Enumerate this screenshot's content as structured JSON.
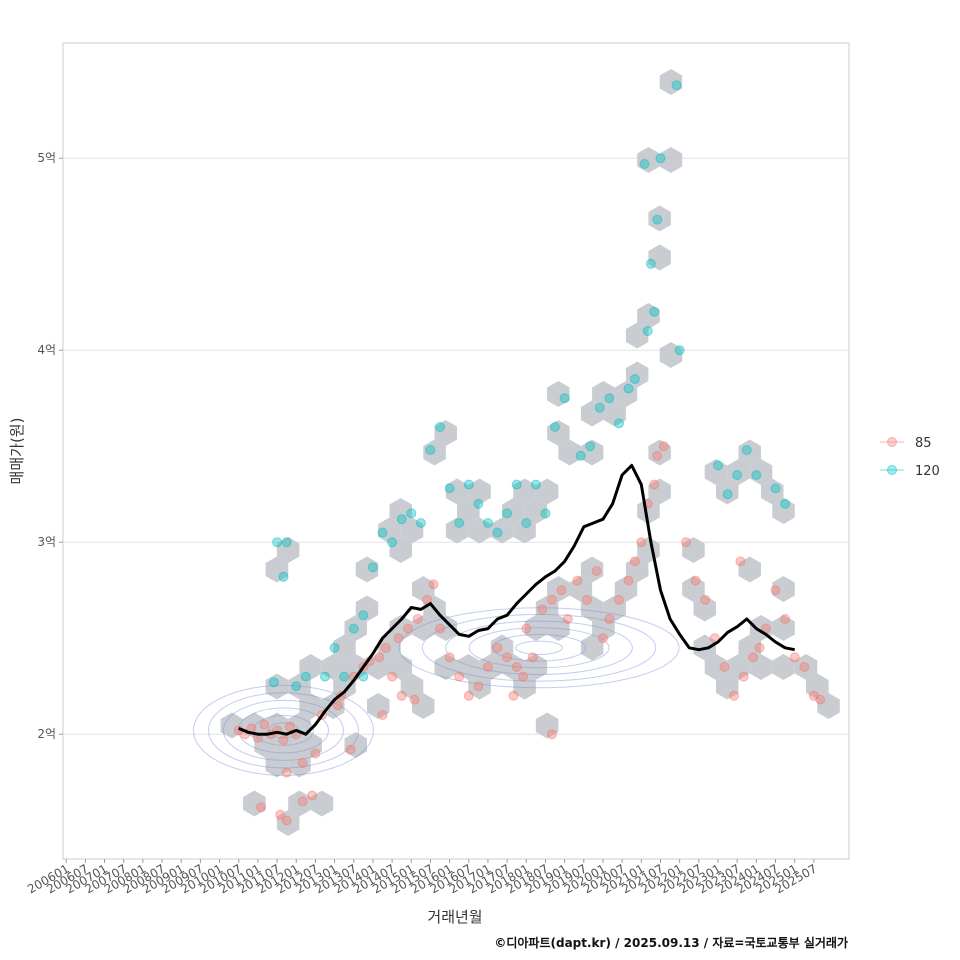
{
  "chart_data": {
    "type": "scatter",
    "title": "",
    "xlabel": "거래년월",
    "ylabel": "매매가(원)",
    "caption": "©디아파트(dapt.kr) / 2025.09.13 / 자료=국토교통부 실거래가",
    "x_ticks": [
      "200601",
      "200607",
      "200701",
      "200707",
      "200801",
      "200807",
      "200901",
      "200907",
      "201001",
      "201007",
      "201101",
      "201107",
      "201201",
      "201207",
      "201301",
      "201307",
      "201401",
      "201407",
      "201501",
      "201507",
      "201601",
      "201607",
      "201701",
      "201707",
      "201801",
      "201807",
      "201901",
      "201907",
      "202001",
      "202007",
      "202101",
      "202107",
      "202201",
      "202207",
      "202301",
      "202307",
      "202401",
      "202407",
      "202501",
      "202507"
    ],
    "y_ticks": [
      {
        "value": 2.0,
        "label": "2억"
      },
      {
        "value": 3.0,
        "label": "3억"
      },
      {
        "value": 4.0,
        "label": "4억"
      },
      {
        "value": 5.0,
        "label": "5억"
      }
    ],
    "xlim": [
      "200512",
      "202606"
    ],
    "ylim": [
      1.35,
      5.6
    ],
    "y_unit": "억원",
    "grid": "horizontal",
    "legend_position": "right",
    "colors": {
      "series_85": "#f8766d",
      "series_120": "#00bfc4",
      "hex": "#c3c8cc",
      "trend": "#000000",
      "contour": "#7b8fe0"
    },
    "series": [
      {
        "name": "85",
        "color": "#f8766d",
        "points": [
          [
            "201007",
            2.02
          ],
          [
            "201009",
            2.0
          ],
          [
            "201011",
            2.03
          ],
          [
            "201101",
            1.98
          ],
          [
            "201103",
            2.05
          ],
          [
            "201105",
            2.0
          ],
          [
            "201107",
            2.02
          ],
          [
            "201109",
            1.97
          ],
          [
            "201111",
            2.04
          ],
          [
            "201201",
            2.0
          ],
          [
            "201102",
            1.62
          ],
          [
            "201108",
            1.58
          ],
          [
            "201110",
            1.55
          ],
          [
            "201203",
            1.65
          ],
          [
            "201206",
            1.68
          ],
          [
            "201110",
            1.8
          ],
          [
            "201203",
            1.85
          ],
          [
            "201207",
            1.9
          ],
          [
            "201209",
            2.1
          ],
          [
            "201302",
            2.15
          ],
          [
            "201303",
            2.2
          ],
          [
            "201306",
            1.92
          ],
          [
            "201307",
            2.3
          ],
          [
            "201310",
            2.35
          ],
          [
            "201312",
            2.38
          ],
          [
            "201403",
            2.4
          ],
          [
            "201405",
            2.45
          ],
          [
            "201407",
            2.3
          ],
          [
            "201409",
            2.5
          ],
          [
            "201412",
            2.55
          ],
          [
            "201503",
            2.6
          ],
          [
            "201506",
            2.7
          ],
          [
            "201508",
            2.78
          ],
          [
            "201510",
            2.55
          ],
          [
            "201404",
            2.1
          ],
          [
            "201410",
            2.2
          ],
          [
            "201502",
            2.18
          ],
          [
            "201601",
            2.4
          ],
          [
            "201604",
            2.3
          ],
          [
            "201607",
            2.2
          ],
          [
            "201610",
            2.25
          ],
          [
            "201701",
            2.35
          ],
          [
            "201704",
            2.45
          ],
          [
            "201707",
            2.4
          ],
          [
            "201710",
            2.35
          ],
          [
            "201801",
            2.55
          ],
          [
            "201709",
            2.2
          ],
          [
            "201712",
            2.3
          ],
          [
            "201803",
            2.4
          ],
          [
            "201806",
            2.65
          ],
          [
            "201809",
            2.7
          ],
          [
            "201812",
            2.75
          ],
          [
            "201902",
            2.6
          ],
          [
            "201905",
            2.8
          ],
          [
            "201908",
            2.7
          ],
          [
            "201911",
            2.85
          ],
          [
            "202001",
            2.5
          ],
          [
            "202003",
            2.6
          ],
          [
            "202006",
            2.7
          ],
          [
            "202009",
            2.8
          ],
          [
            "202011",
            2.9
          ],
          [
            "202101",
            3.0
          ],
          [
            "202103",
            3.2
          ],
          [
            "202105",
            3.3
          ],
          [
            "202106",
            3.45
          ],
          [
            "202108",
            3.5
          ],
          [
            "201809",
            2.0
          ],
          [
            "202203",
            3.0
          ],
          [
            "202206",
            2.8
          ],
          [
            "202209",
            2.7
          ],
          [
            "202212",
            2.5
          ],
          [
            "202303",
            2.35
          ],
          [
            "202306",
            2.2
          ],
          [
            "202309",
            2.3
          ],
          [
            "202312",
            2.4
          ],
          [
            "202308",
            2.9
          ],
          [
            "202402",
            2.45
          ],
          [
            "202404",
            2.55
          ],
          [
            "202407",
            2.75
          ],
          [
            "202410",
            2.6
          ],
          [
            "202501",
            2.4
          ],
          [
            "202504",
            2.35
          ],
          [
            "202507",
            2.2
          ],
          [
            "202509",
            2.18
          ]
        ]
      },
      {
        "name": "120",
        "color": "#00bfc4",
        "points": [
          [
            "201107",
            3.0
          ],
          [
            "201110",
            3.0
          ],
          [
            "201109",
            2.82
          ],
          [
            "201106",
            2.27
          ],
          [
            "201201",
            2.25
          ],
          [
            "201204",
            2.3
          ],
          [
            "201210",
            2.3
          ],
          [
            "201304",
            2.3
          ],
          [
            "201310",
            2.3
          ],
          [
            "201307",
            2.55
          ],
          [
            "201310",
            2.62
          ],
          [
            "201301",
            2.45
          ],
          [
            "201401",
            2.87
          ],
          [
            "201404",
            3.05
          ],
          [
            "201407",
            3.0
          ],
          [
            "201410",
            3.12
          ],
          [
            "201501",
            3.15
          ],
          [
            "201504",
            3.1
          ],
          [
            "201507",
            3.48
          ],
          [
            "201510",
            3.6
          ],
          [
            "201601",
            3.28
          ],
          [
            "201604",
            3.1
          ],
          [
            "201607",
            3.3
          ],
          [
            "201610",
            3.2
          ],
          [
            "201701",
            3.1
          ],
          [
            "201704",
            3.05
          ],
          [
            "201707",
            3.15
          ],
          [
            "201710",
            3.3
          ],
          [
            "201801",
            3.1
          ],
          [
            "201804",
            3.3
          ],
          [
            "201807",
            3.15
          ],
          [
            "201810",
            3.6
          ],
          [
            "201901",
            3.75
          ],
          [
            "201906",
            3.45
          ],
          [
            "201909",
            3.5
          ],
          [
            "201912",
            3.7
          ],
          [
            "202003",
            3.75
          ],
          [
            "202006",
            3.62
          ],
          [
            "202009",
            3.8
          ],
          [
            "202011",
            3.85
          ],
          [
            "202103",
            4.1
          ],
          [
            "202105",
            4.2
          ],
          [
            "202104",
            4.45
          ],
          [
            "202106",
            4.68
          ],
          [
            "202102",
            4.97
          ],
          [
            "202107",
            5.0
          ],
          [
            "202112",
            5.38
          ],
          [
            "202201",
            4.0
          ],
          [
            "202301",
            3.4
          ],
          [
            "202304",
            3.25
          ],
          [
            "202307",
            3.35
          ],
          [
            "202310",
            3.48
          ],
          [
            "202401",
            3.35
          ],
          [
            "202407",
            3.28
          ],
          [
            "202410",
            3.2
          ]
        ]
      }
    ],
    "trend_line": [
      [
        "201007",
        2.03
      ],
      [
        "201010",
        2.01
      ],
      [
        "201101",
        2.0
      ],
      [
        "201104",
        2.0
      ],
      [
        "201107",
        2.01
      ],
      [
        "201110",
        2.0
      ],
      [
        "201201",
        2.02
      ],
      [
        "201204",
        2.0
      ],
      [
        "201207",
        2.05
      ],
      [
        "201210",
        2.12
      ],
      [
        "201301",
        2.18
      ],
      [
        "201304",
        2.22
      ],
      [
        "201307",
        2.28
      ],
      [
        "201310",
        2.35
      ],
      [
        "201401",
        2.42
      ],
      [
        "201404",
        2.5
      ],
      [
        "201407",
        2.55
      ],
      [
        "201410",
        2.6
      ],
      [
        "201501",
        2.66
      ],
      [
        "201504",
        2.65
      ],
      [
        "201507",
        2.68
      ],
      [
        "201510",
        2.62
      ],
      [
        "201601",
        2.57
      ],
      [
        "201604",
        2.52
      ],
      [
        "201607",
        2.51
      ],
      [
        "201610",
        2.54
      ],
      [
        "201701",
        2.55
      ],
      [
        "201704",
        2.6
      ],
      [
        "201707",
        2.62
      ],
      [
        "201710",
        2.68
      ],
      [
        "201801",
        2.73
      ],
      [
        "201804",
        2.78
      ],
      [
        "201807",
        2.82
      ],
      [
        "201810",
        2.85
      ],
      [
        "201901",
        2.9
      ],
      [
        "201904",
        2.98
      ],
      [
        "201907",
        3.08
      ],
      [
        "201910",
        3.1
      ],
      [
        "202001",
        3.12
      ],
      [
        "202004",
        3.2
      ],
      [
        "202007",
        3.35
      ],
      [
        "202010",
        3.4
      ],
      [
        "202101",
        3.3
      ],
      [
        "202104",
        3.0
      ],
      [
        "202107",
        2.75
      ],
      [
        "202110",
        2.6
      ],
      [
        "202201",
        2.52
      ],
      [
        "202204",
        2.45
      ],
      [
        "202207",
        2.44
      ],
      [
        "202210",
        2.45
      ],
      [
        "202301",
        2.48
      ],
      [
        "202304",
        2.53
      ],
      [
        "202307",
        2.56
      ],
      [
        "202310",
        2.6
      ],
      [
        "202401",
        2.55
      ],
      [
        "202404",
        2.52
      ],
      [
        "202407",
        2.48
      ],
      [
        "202410",
        2.45
      ],
      [
        "202501",
        2.44
      ]
    ]
  },
  "legend": {
    "items": [
      {
        "label": "85",
        "color": "#f8766d"
      },
      {
        "label": "120",
        "color": "#00bfc4"
      }
    ]
  }
}
